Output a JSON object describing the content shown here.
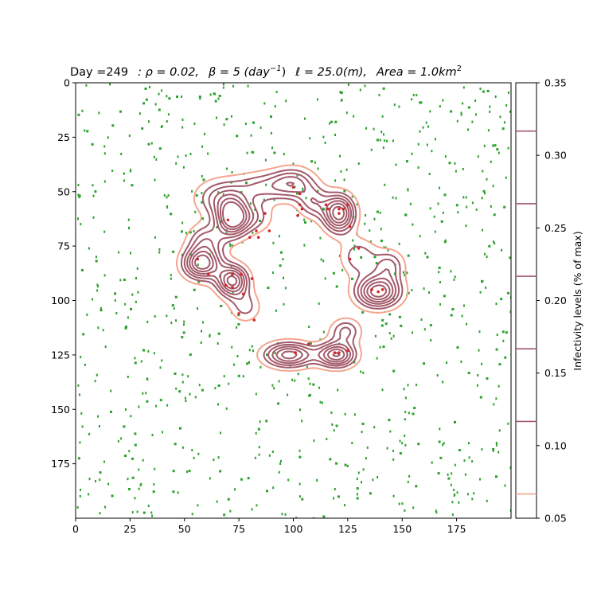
{
  "chart_data": {
    "type": "contour",
    "title": "Day =249   : ρ = 0.02,   β = 5 (day⁻¹),   ℓ = 25.0(m),   Area = 1.0km²",
    "title_parts": {
      "day": "Day =249",
      "rho": "ρ = 0.02,",
      "beta": "β = 5 (day",
      "beta_exp": "−1",
      "beta_close": ")",
      "ell": "ℓ = 25.0(m),",
      "area": "Area = 1.0km",
      "area_exp": "2"
    },
    "xlim": [
      0,
      200
    ],
    "ylim": [
      200,
      0
    ],
    "x_ticks": [
      0,
      25,
      50,
      75,
      100,
      125,
      150,
      175
    ],
    "y_ticks": [
      0,
      25,
      50,
      75,
      100,
      125,
      150,
      175
    ],
    "colorbar": {
      "label": "Infectivity levels   (% of max)",
      "range": [
        0.05,
        0.35
      ],
      "ticks": [
        0.05,
        0.1,
        0.15,
        0.2,
        0.25,
        0.3,
        0.35
      ],
      "levels": [
        0.0667,
        0.1167,
        0.1667,
        0.2167,
        0.2667,
        0.3167
      ]
    },
    "colors": {
      "susceptible": "#2ca02c",
      "infected": "#d62728",
      "outer_contour": "#f5a58f",
      "inner_contour": "#a35a6a"
    },
    "hotspots": [
      {
        "x": 72,
        "y": 62,
        "amp": 1.0,
        "sx": 5,
        "sy": 6
      },
      {
        "x": 58,
        "y": 83,
        "amp": 1.0,
        "sx": 6,
        "sy": 5
      },
      {
        "x": 72,
        "y": 91,
        "amp": 0.95,
        "sx": 5,
        "sy": 5
      },
      {
        "x": 60,
        "y": 72,
        "amp": 0.45,
        "sx": 6,
        "sy": 5
      },
      {
        "x": 66,
        "y": 53,
        "amp": 0.45,
        "sx": 8,
        "sy": 6
      },
      {
        "x": 85,
        "y": 48,
        "amp": 0.4,
        "sx": 9,
        "sy": 5
      },
      {
        "x": 100,
        "y": 46,
        "amp": 0.55,
        "sx": 7,
        "sy": 5
      },
      {
        "x": 82,
        "y": 62,
        "amp": 0.35,
        "sx": 6,
        "sy": 5
      },
      {
        "x": 121,
        "y": 60,
        "amp": 1.0,
        "sx": 5,
        "sy": 6
      },
      {
        "x": 109,
        "y": 55,
        "amp": 0.45,
        "sx": 5,
        "sy": 5
      },
      {
        "x": 130,
        "y": 80,
        "amp": 0.4,
        "sx": 6,
        "sy": 6
      },
      {
        "x": 139,
        "y": 96,
        "amp": 1.0,
        "sx": 7,
        "sy": 5
      },
      {
        "x": 144,
        "y": 84,
        "amp": 0.45,
        "sx": 5,
        "sy": 5
      },
      {
        "x": 98,
        "y": 125,
        "amp": 0.85,
        "sx": 8,
        "sy": 4
      },
      {
        "x": 120,
        "y": 125,
        "amp": 0.9,
        "sx": 6,
        "sy": 4
      },
      {
        "x": 124,
        "y": 114,
        "amp": 0.45,
        "sx": 5,
        "sy": 4
      },
      {
        "x": 78,
        "y": 103,
        "amp": 0.35,
        "sx": 5,
        "sy": 5
      }
    ],
    "infected_points": [
      [
        72,
        88
      ],
      [
        69,
        93
      ],
      [
        72,
        94
      ],
      [
        75,
        106
      ],
      [
        76,
        88
      ],
      [
        82,
        109
      ],
      [
        81,
        90
      ],
      [
        77,
        97
      ],
      [
        61,
        88
      ],
      [
        56,
        81
      ],
      [
        100,
        48
      ],
      [
        103,
        51
      ],
      [
        103,
        56
      ],
      [
        104,
        58
      ],
      [
        102,
        61
      ],
      [
        115,
        56
      ],
      [
        116,
        58
      ],
      [
        121,
        58
      ],
      [
        123,
        58
      ],
      [
        125,
        56
      ],
      [
        126,
        66
      ],
      [
        130,
        76
      ],
      [
        126,
        81
      ],
      [
        136,
        95
      ],
      [
        139,
        96
      ],
      [
        141,
        95
      ],
      [
        101,
        124
      ],
      [
        107,
        120
      ],
      [
        119,
        124
      ],
      [
        121,
        124
      ],
      [
        125,
        123
      ],
      [
        121,
        60
      ],
      [
        87,
        60
      ],
      [
        83,
        68
      ],
      [
        89,
        68
      ],
      [
        84,
        71
      ],
      [
        80,
        71
      ],
      [
        70,
        63
      ]
    ],
    "susceptible_count": 820,
    "susceptible_seed": 249
  }
}
